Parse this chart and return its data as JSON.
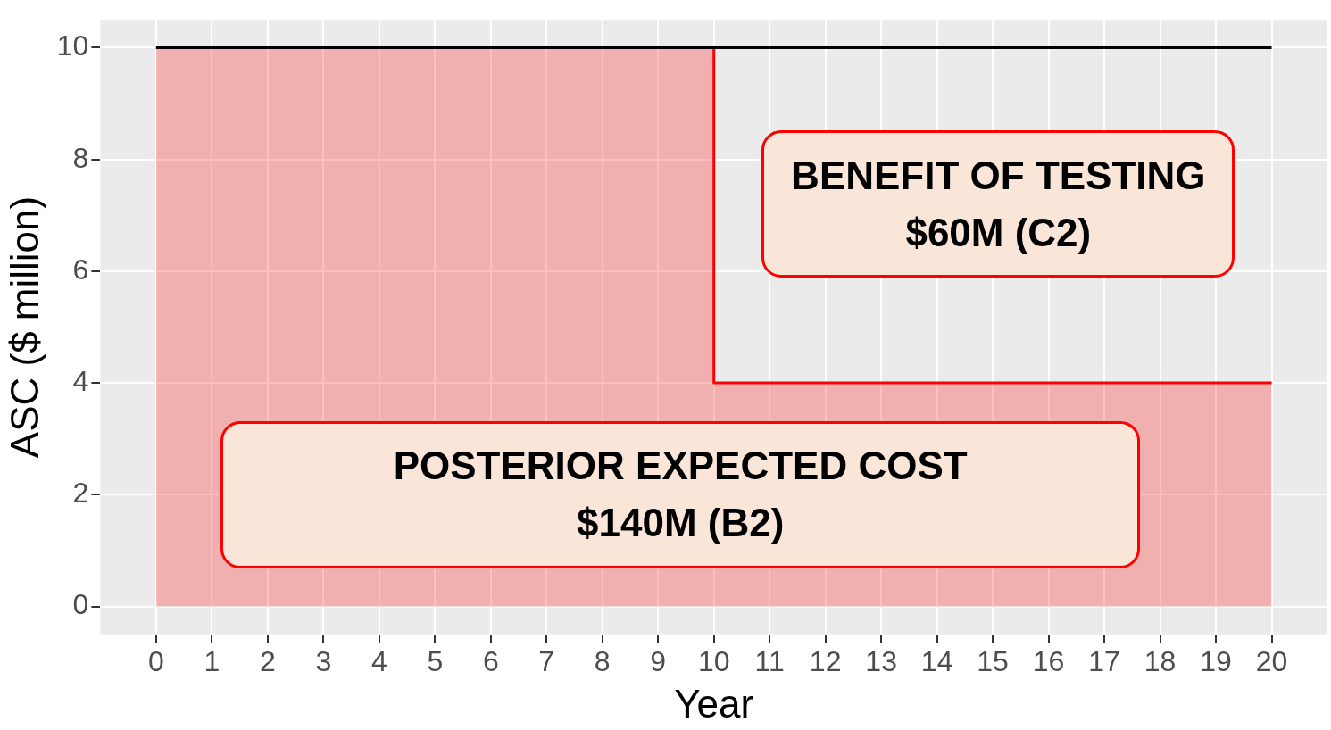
{
  "chart_data": {
    "type": "line",
    "xlabel": "Year",
    "ylabel": "ASC ($ million)",
    "xlim": [
      -1,
      21
    ],
    "xticks": [
      0,
      1,
      2,
      3,
      4,
      5,
      6,
      7,
      8,
      9,
      10,
      11,
      12,
      13,
      14,
      15,
      16,
      17,
      18,
      19,
      20
    ],
    "ylim": [
      -0.5,
      10.5
    ],
    "yticks": [
      0,
      2,
      4,
      6,
      8,
      10
    ],
    "grid": true,
    "series": [
      {
        "color": "#000000",
        "x": [
          0,
          20
        ],
        "values": [
          10,
          10
        ]
      },
      {
        "type": "area",
        "color": "#ff0000",
        "x": [
          0,
          10,
          10,
          20
        ],
        "values": [
          10,
          10,
          4,
          4
        ]
      }
    ],
    "annotations": [
      "BENEFIT OF TESTING\n$60M (C2)",
      "POSTERIOR EXPECTED COST\n$140M (B2)"
    ]
  }
}
